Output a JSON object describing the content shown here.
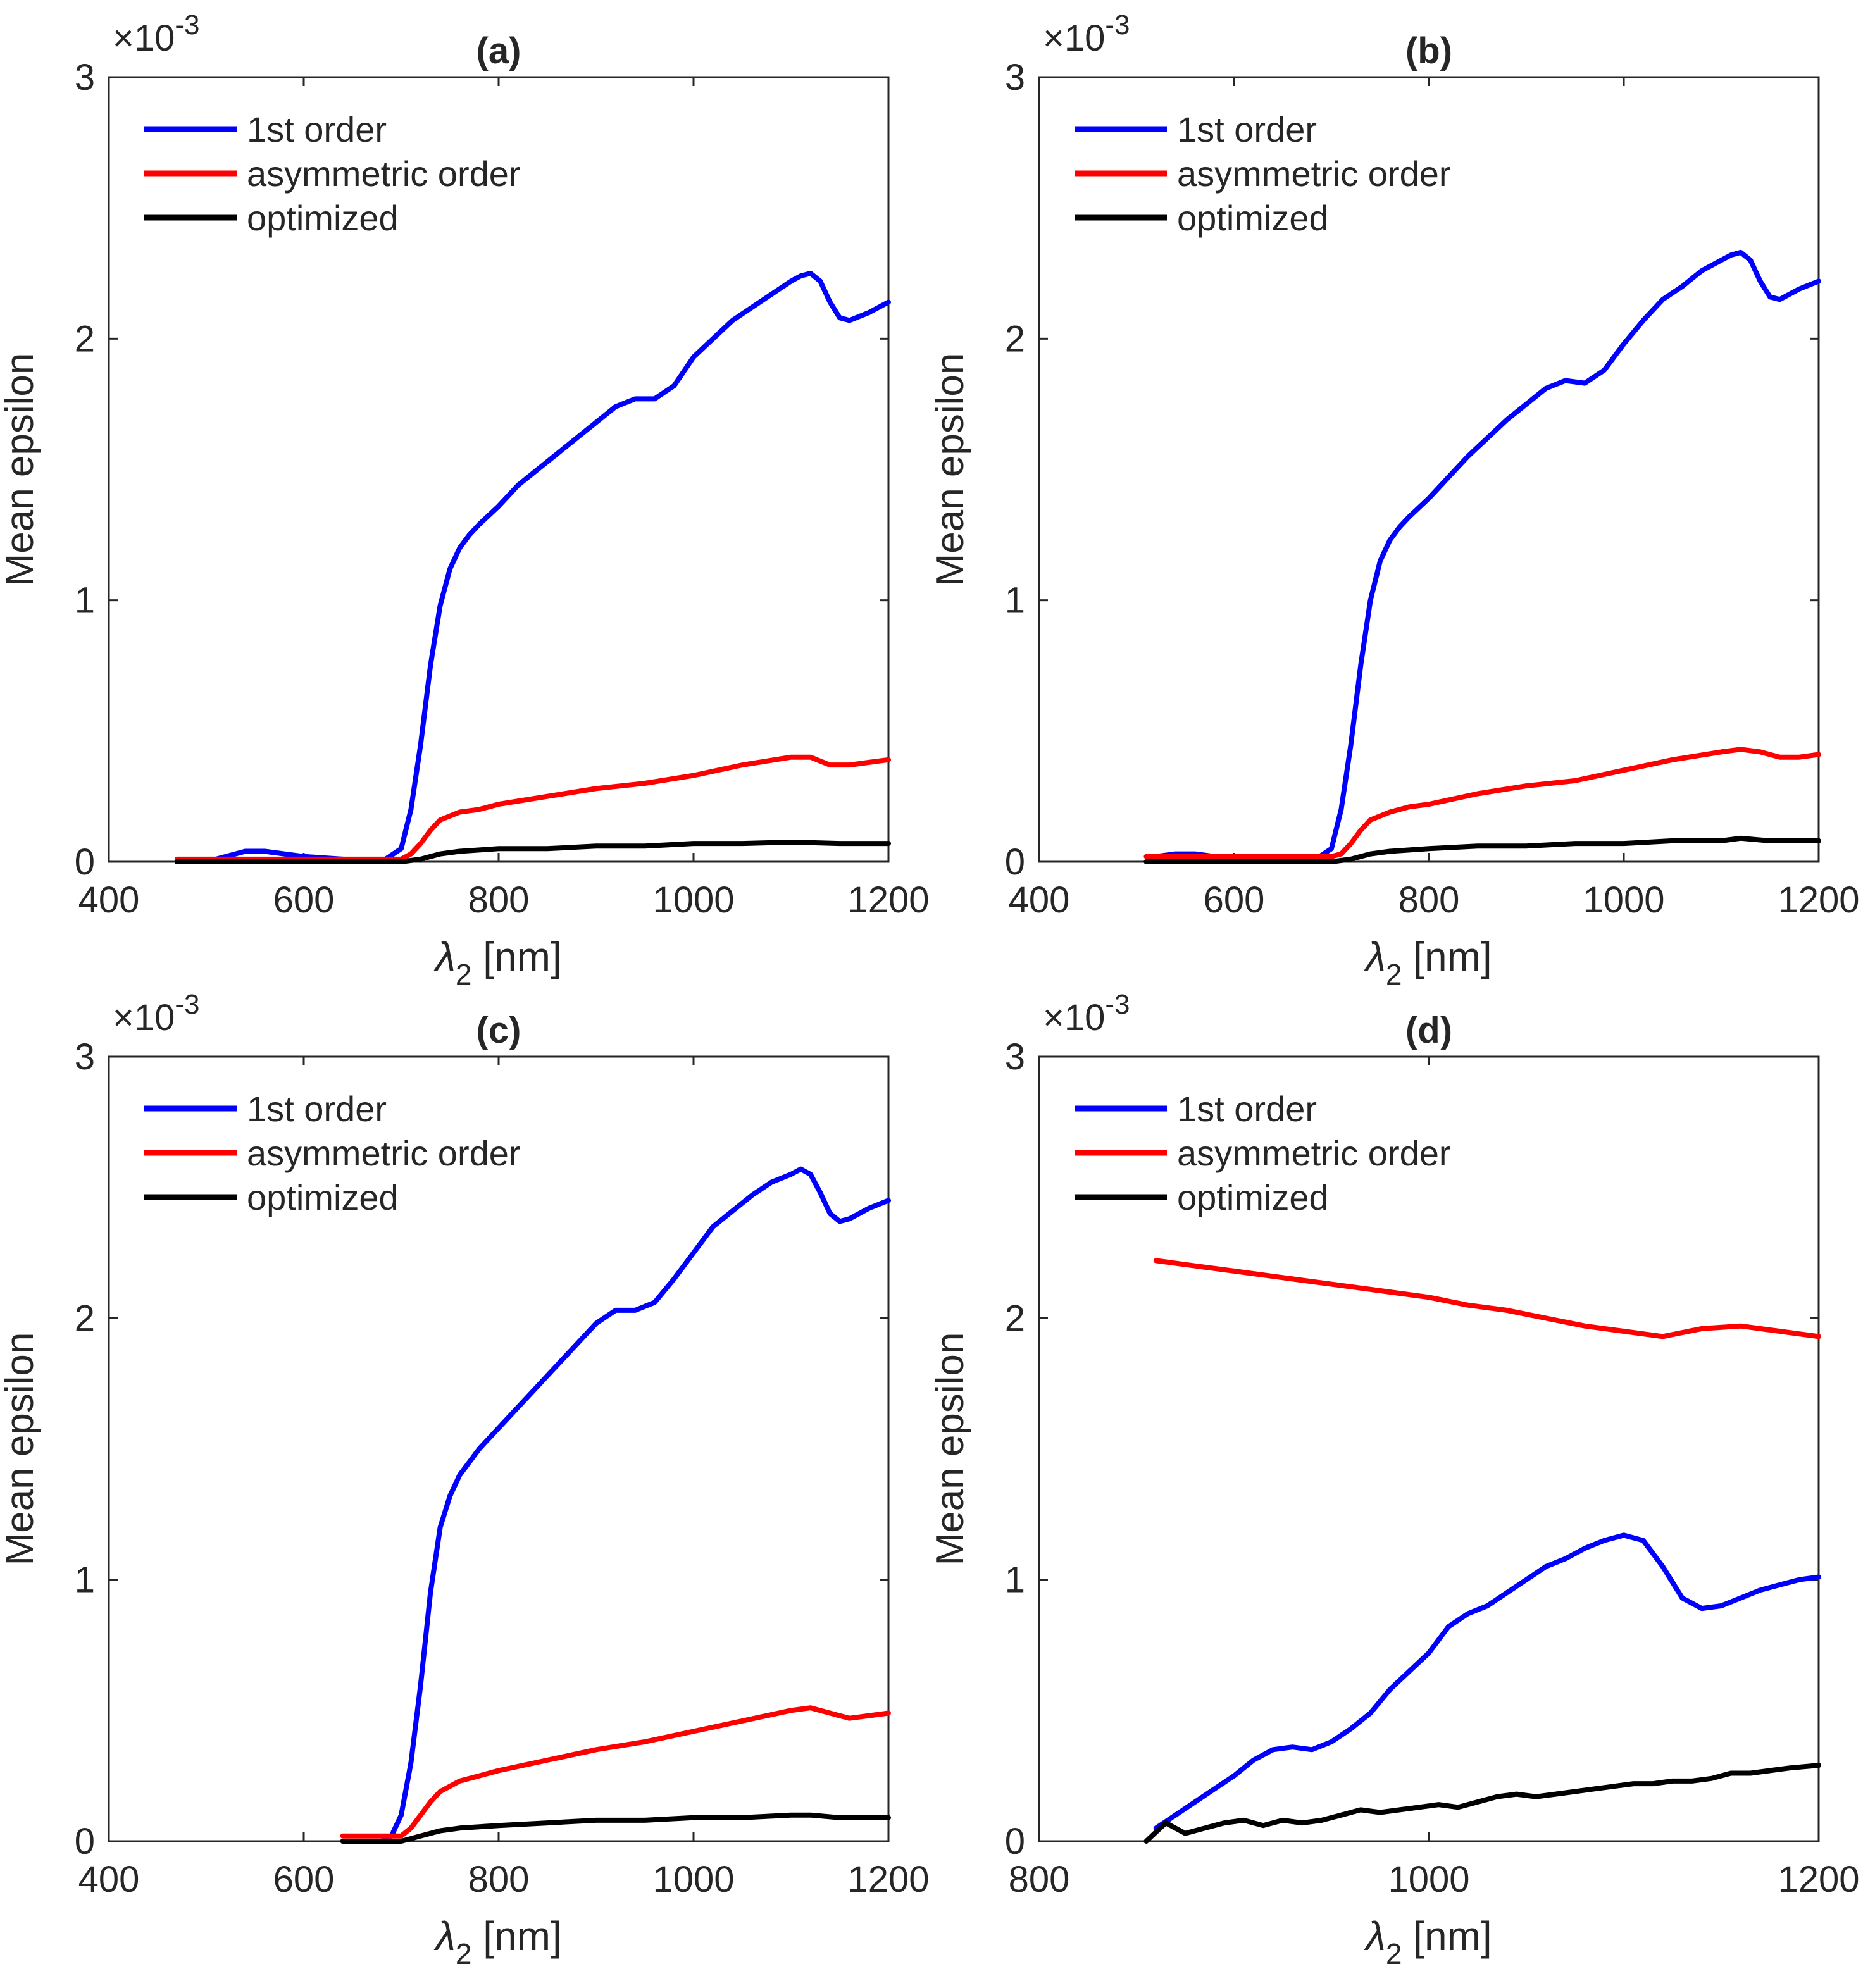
{
  "chart_data": [
    {
      "panel_label": "(a)",
      "type": "line",
      "xlabel": "λ",
      "xlabel_subscript": "2",
      "xlabel_unit": "[nm]",
      "ylabel": "Mean epsilon",
      "y_exponent_base": "×10",
      "y_exponent_power": "-3",
      "xlim": [
        400,
        1200
      ],
      "ylim": [
        0,
        3
      ],
      "xticks": [
        "400",
        "600",
        "800",
        "1000",
        "1200"
      ],
      "yticks": [
        "0",
        "1",
        "2",
        "3"
      ],
      "legend_position": "top-left",
      "grid": false,
      "series": [
        {
          "name": "1st order",
          "color": "#0000ff",
          "x": [
            500,
            520,
            540,
            560,
            580,
            600,
            640,
            680,
            700,
            710,
            720,
            730,
            740,
            750,
            760,
            770,
            780,
            800,
            820,
            840,
            860,
            880,
            900,
            920,
            940,
            960,
            980,
            1000,
            1020,
            1040,
            1060,
            1080,
            1100,
            1110,
            1120,
            1130,
            1140,
            1150,
            1160,
            1180,
            1200
          ],
          "y": [
            0.0,
            0.02,
            0.04,
            0.04,
            0.03,
            0.02,
            0.01,
            0.0,
            0.05,
            0.2,
            0.45,
            0.75,
            0.98,
            1.12,
            1.2,
            1.25,
            1.29,
            1.36,
            1.44,
            1.5,
            1.56,
            1.62,
            1.68,
            1.74,
            1.77,
            1.77,
            1.82,
            1.93,
            2.0,
            2.07,
            2.12,
            2.17,
            2.22,
            2.24,
            2.25,
            2.22,
            2.14,
            2.08,
            2.07,
            2.1,
            2.14
          ]
        },
        {
          "name": "asymmetric order",
          "color": "#ff0000",
          "x": [
            470,
            500,
            600,
            680,
            700,
            710,
            720,
            730,
            740,
            760,
            780,
            800,
            850,
            900,
            950,
            1000,
            1050,
            1100,
            1120,
            1140,
            1160,
            1180,
            1200
          ],
          "y": [
            0.01,
            0.01,
            0.01,
            0.01,
            0.01,
            0.03,
            0.07,
            0.12,
            0.16,
            0.19,
            0.2,
            0.22,
            0.25,
            0.28,
            0.3,
            0.33,
            0.37,
            0.4,
            0.4,
            0.37,
            0.37,
            0.38,
            0.39
          ]
        },
        {
          "name": "optimized",
          "color": "#000000",
          "x": [
            470,
            500,
            600,
            700,
            720,
            740,
            760,
            800,
            850,
            900,
            950,
            1000,
            1050,
            1100,
            1150,
            1200
          ],
          "y": [
            0.0,
            0.0,
            0.0,
            0.0,
            0.01,
            0.03,
            0.04,
            0.05,
            0.05,
            0.06,
            0.06,
            0.07,
            0.07,
            0.075,
            0.07,
            0.07
          ]
        }
      ]
    },
    {
      "panel_label": "(b)",
      "type": "line",
      "xlabel": "λ",
      "xlabel_subscript": "2",
      "xlabel_unit": "[nm]",
      "ylabel": "Mean epsilon",
      "y_exponent_base": "×10",
      "y_exponent_power": "-3",
      "xlim": [
        400,
        1200
      ],
      "ylim": [
        0,
        3
      ],
      "xticks": [
        "400",
        "600",
        "800",
        "1000",
        "1200"
      ],
      "yticks": [
        "0",
        "1",
        "2",
        "3"
      ],
      "legend_position": "top-left",
      "grid": false,
      "series": [
        {
          "name": "1st order",
          "color": "#0000ff",
          "x": [
            520,
            540,
            560,
            580,
            600,
            640,
            680,
            700,
            710,
            720,
            730,
            740,
            750,
            760,
            770,
            780,
            800,
            820,
            840,
            860,
            880,
            900,
            920,
            940,
            960,
            980,
            1000,
            1020,
            1040,
            1060,
            1080,
            1100,
            1110,
            1120,
            1130,
            1140,
            1150,
            1160,
            1180,
            1200
          ],
          "y": [
            0.02,
            0.03,
            0.03,
            0.02,
            0.01,
            0.0,
            0.0,
            0.05,
            0.2,
            0.45,
            0.75,
            1.0,
            1.15,
            1.23,
            1.28,
            1.32,
            1.39,
            1.47,
            1.55,
            1.62,
            1.69,
            1.75,
            1.81,
            1.84,
            1.83,
            1.88,
            1.98,
            2.07,
            2.15,
            2.2,
            2.26,
            2.3,
            2.32,
            2.33,
            2.3,
            2.22,
            2.16,
            2.15,
            2.19,
            2.22
          ]
        },
        {
          "name": "asymmetric order",
          "color": "#ff0000",
          "x": [
            510,
            600,
            680,
            700,
            710,
            720,
            730,
            740,
            760,
            780,
            800,
            850,
            900,
            950,
            1000,
            1050,
            1100,
            1120,
            1140,
            1160,
            1180,
            1200
          ],
          "y": [
            0.02,
            0.02,
            0.02,
            0.02,
            0.03,
            0.07,
            0.12,
            0.16,
            0.19,
            0.21,
            0.22,
            0.26,
            0.29,
            0.31,
            0.35,
            0.39,
            0.42,
            0.43,
            0.42,
            0.4,
            0.4,
            0.41
          ]
        },
        {
          "name": "optimized",
          "color": "#000000",
          "x": [
            510,
            600,
            700,
            720,
            740,
            760,
            800,
            850,
            900,
            950,
            1000,
            1050,
            1100,
            1120,
            1150,
            1200
          ],
          "y": [
            0.0,
            0.0,
            0.0,
            0.01,
            0.03,
            0.04,
            0.05,
            0.06,
            0.06,
            0.07,
            0.07,
            0.08,
            0.08,
            0.09,
            0.08,
            0.08
          ]
        }
      ]
    },
    {
      "panel_label": "(c)",
      "type": "line",
      "xlabel": "λ",
      "xlabel_subscript": "2",
      "xlabel_unit": "[nm]",
      "ylabel": "Mean epsilon",
      "y_exponent_base": "×10",
      "y_exponent_power": "-3",
      "xlim": [
        400,
        1200
      ],
      "ylim": [
        0,
        3
      ],
      "xticks": [
        "400",
        "600",
        "800",
        "1000",
        "1200"
      ],
      "yticks": [
        "0",
        "1",
        "2",
        "3"
      ],
      "legend_position": "top-left",
      "grid": false,
      "series": [
        {
          "name": "1st order",
          "color": "#0000ff",
          "x": [
            640,
            680,
            690,
            700,
            710,
            720,
            730,
            740,
            750,
            760,
            770,
            780,
            800,
            820,
            840,
            860,
            880,
            900,
            920,
            940,
            960,
            980,
            1000,
            1020,
            1040,
            1060,
            1080,
            1100,
            1110,
            1120,
            1130,
            1140,
            1150,
            1160,
            1180,
            1200
          ],
          "y": [
            0.0,
            0.0,
            0.02,
            0.1,
            0.3,
            0.6,
            0.95,
            1.2,
            1.32,
            1.4,
            1.45,
            1.5,
            1.58,
            1.66,
            1.74,
            1.82,
            1.9,
            1.98,
            2.03,
            2.03,
            2.06,
            2.15,
            2.25,
            2.35,
            2.41,
            2.47,
            2.52,
            2.55,
            2.57,
            2.55,
            2.48,
            2.4,
            2.37,
            2.38,
            2.42,
            2.45
          ]
        },
        {
          "name": "asymmetric order",
          "color": "#ff0000",
          "x": [
            640,
            680,
            700,
            710,
            720,
            730,
            740,
            760,
            780,
            800,
            850,
            900,
            950,
            1000,
            1050,
            1100,
            1120,
            1140,
            1160,
            1180,
            1200
          ],
          "y": [
            0.02,
            0.02,
            0.02,
            0.05,
            0.1,
            0.15,
            0.19,
            0.23,
            0.25,
            0.27,
            0.31,
            0.35,
            0.38,
            0.42,
            0.46,
            0.5,
            0.51,
            0.49,
            0.47,
            0.48,
            0.49
          ]
        },
        {
          "name": "optimized",
          "color": "#000000",
          "x": [
            640,
            700,
            720,
            740,
            760,
            800,
            850,
            900,
            950,
            1000,
            1050,
            1100,
            1120,
            1150,
            1200
          ],
          "y": [
            0.0,
            0.0,
            0.02,
            0.04,
            0.05,
            0.06,
            0.07,
            0.08,
            0.08,
            0.09,
            0.09,
            0.1,
            0.1,
            0.09,
            0.09
          ]
        }
      ]
    },
    {
      "panel_label": "(d)",
      "type": "line",
      "xlabel": "λ",
      "xlabel_subscript": "2",
      "xlabel_unit": "[nm]",
      "ylabel": "Mean epsilon",
      "y_exponent_base": "×10",
      "y_exponent_power": "-3",
      "xlim": [
        800,
        1200
      ],
      "ylim": [
        0,
        3
      ],
      "xticks": [
        "800",
        "1000",
        "1200"
      ],
      "yticks": [
        "0",
        "1",
        "2",
        "3"
      ],
      "legend_position": "top-left",
      "grid": false,
      "series": [
        {
          "name": "1st order",
          "color": "#0000ff",
          "x": [
            860,
            870,
            880,
            890,
            900,
            910,
            920,
            930,
            940,
            950,
            960,
            970,
            980,
            990,
            1000,
            1010,
            1020,
            1030,
            1040,
            1050,
            1060,
            1070,
            1080,
            1090,
            1100,
            1110,
            1120,
            1130,
            1140,
            1150,
            1160,
            1170,
            1180,
            1190,
            1200
          ],
          "y": [
            0.05,
            0.1,
            0.15,
            0.2,
            0.25,
            0.31,
            0.35,
            0.36,
            0.35,
            0.38,
            0.43,
            0.49,
            0.58,
            0.65,
            0.72,
            0.82,
            0.87,
            0.9,
            0.95,
            1.0,
            1.05,
            1.08,
            1.12,
            1.15,
            1.17,
            1.15,
            1.05,
            0.93,
            0.89,
            0.9,
            0.93,
            0.96,
            0.98,
            1.0,
            1.01
          ]
        },
        {
          "name": "asymmetric order",
          "color": "#ff0000",
          "x": [
            860,
            880,
            900,
            920,
            940,
            960,
            980,
            1000,
            1020,
            1040,
            1060,
            1080,
            1100,
            1120,
            1140,
            1160,
            1180,
            1200
          ],
          "y": [
            2.22,
            2.2,
            2.18,
            2.16,
            2.14,
            2.12,
            2.1,
            2.08,
            2.05,
            2.03,
            2.0,
            1.97,
            1.95,
            1.93,
            1.96,
            1.97,
            1.95,
            1.93
          ]
        },
        {
          "name": "optimized",
          "color": "#000000",
          "x": [
            855,
            865,
            875,
            885,
            895,
            905,
            915,
            925,
            935,
            945,
            955,
            965,
            975,
            985,
            995,
            1005,
            1015,
            1025,
            1035,
            1045,
            1055,
            1065,
            1075,
            1085,
            1095,
            1105,
            1115,
            1125,
            1135,
            1145,
            1155,
            1165,
            1175,
            1185,
            1200
          ],
          "y": [
            0.0,
            0.07,
            0.03,
            0.05,
            0.07,
            0.08,
            0.06,
            0.08,
            0.07,
            0.08,
            0.1,
            0.12,
            0.11,
            0.12,
            0.13,
            0.14,
            0.13,
            0.15,
            0.17,
            0.18,
            0.17,
            0.18,
            0.19,
            0.2,
            0.21,
            0.22,
            0.22,
            0.23,
            0.23,
            0.24,
            0.26,
            0.26,
            0.27,
            0.28,
            0.29
          ]
        }
      ]
    }
  ]
}
